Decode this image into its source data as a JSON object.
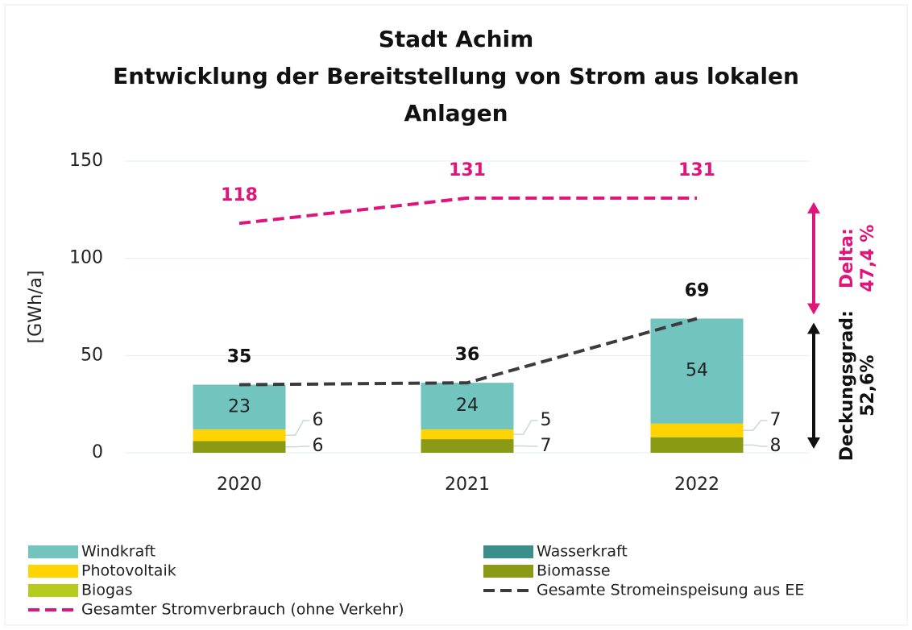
{
  "chart_data": {
    "type": "bar",
    "title": [
      "Stadt Achim",
      "Entwicklung der Bereitstellung von Strom aus lokalen",
      "Anlagen"
    ],
    "y_label": "[GWh/a]",
    "categories": [
      "2020",
      "2021",
      "2022"
    ],
    "ylim": [
      0,
      150
    ],
    "yticks": [
      0,
      50,
      100,
      150
    ],
    "grid": true,
    "series": [
      {
        "name": "Windkraft",
        "kind": "bar",
        "color": "#72c4bf",
        "values": [
          23,
          24,
          54
        ]
      },
      {
        "name": "Wasserkraft",
        "kind": "bar",
        "color": "#3a8f8a",
        "values": [
          0,
          0,
          0
        ]
      },
      {
        "name": "Photovoltaik",
        "kind": "bar",
        "color": "#ffd400",
        "values": [
          6,
          5,
          7
        ]
      },
      {
        "name": "Biomasse",
        "kind": "bar",
        "color": "#8a9a14",
        "values": [
          6,
          7,
          8
        ]
      },
      {
        "name": "Biogas",
        "kind": "bar",
        "color": "#b6cc1c",
        "values": [
          0,
          0,
          0
        ]
      },
      {
        "name": "Gesamte Stromeinspeisung aus EE",
        "kind": "line",
        "color": "#3c3c3c",
        "values": [
          35,
          36,
          69
        ]
      },
      {
        "name": "Gesamter Stromverbrauch (ohne Verkehr)",
        "kind": "line",
        "color": "#e0157a",
        "values": [
          118,
          131,
          131
        ]
      }
    ],
    "annotations": {
      "delta_label": "Delta:",
      "delta_value": "47,4 %",
      "coverage_label": "Deckungsgrad:",
      "coverage_value": "52,6%"
    }
  }
}
